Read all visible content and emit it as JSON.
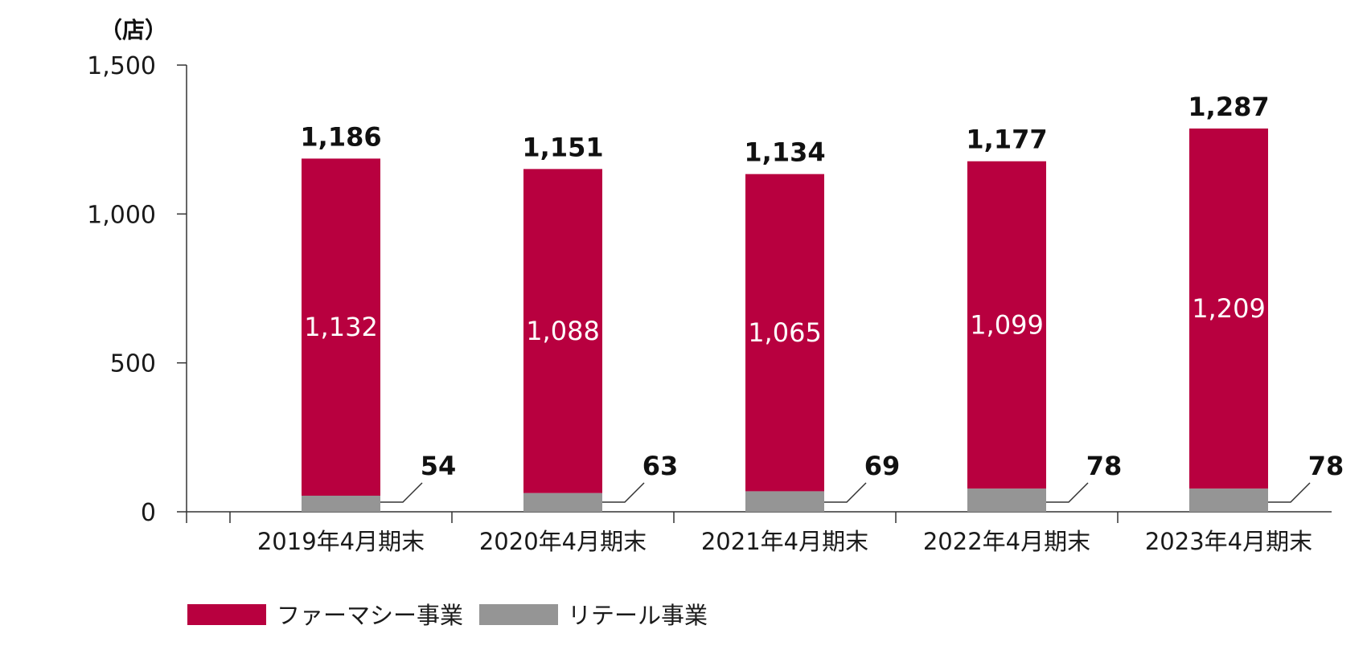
{
  "chart_data": {
    "type": "bar",
    "stacked": true,
    "unit_label": "（店）",
    "categories": [
      "2019年4月期末",
      "2020年4月期末",
      "2021年4月期末",
      "2022年4月期末",
      "2023年4月期末"
    ],
    "series": [
      {
        "name": "リテール事業",
        "values": [
          54,
          63,
          69,
          78,
          78
        ],
        "color": "#959595"
      },
      {
        "name": "ファーマシー事業",
        "values": [
          1132,
          1088,
          1065,
          1099,
          1209
        ],
        "color": "#b8003f"
      }
    ],
    "totals": [
      1186,
      1151,
      1134,
      1177,
      1287
    ],
    "total_labels": [
      "1,186",
      "1,151",
      "1,134",
      "1,177",
      "1,287"
    ],
    "pharmacy_labels": [
      "1,132",
      "1,088",
      "1,065",
      "1,099",
      "1,209"
    ],
    "retail_labels": [
      "54",
      "63",
      "69",
      "78",
      "78"
    ],
    "yticks": [
      0,
      500,
      1000,
      1500
    ],
    "ytick_labels": [
      "0",
      "500",
      "1,000",
      "1,500"
    ],
    "ylim": [
      0,
      1500
    ],
    "legend": {
      "placement": "bottom-left",
      "items": [
        {
          "label": "ファーマシー事業",
          "color": "#b8003f"
        },
        {
          "label": "リテール事業",
          "color": "#959595"
        }
      ]
    },
    "grid": false
  }
}
